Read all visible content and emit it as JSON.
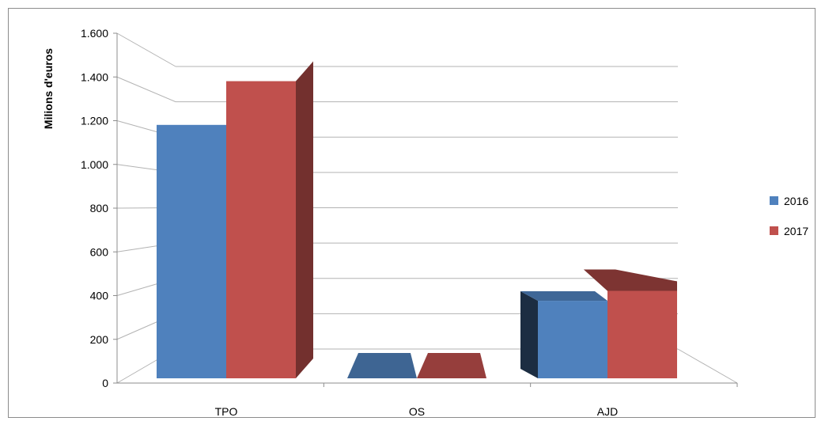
{
  "chart_data": {
    "type": "bar",
    "title": "",
    "xlabel": "",
    "ylabel": "Milions d'euros",
    "ylim": [
      0,
      1600
    ],
    "yticks": [
      0,
      200,
      400,
      600,
      800,
      1000,
      1200,
      1400,
      1600
    ],
    "ytick_labels": [
      "0",
      "200",
      "400",
      "600",
      "800",
      "1.000",
      "1.200",
      "1.400",
      "1.600"
    ],
    "categories": [
      "TPO",
      "OS",
      "AJD"
    ],
    "series": [
      {
        "name": "2016",
        "values": [
          1275,
          0,
          390
        ],
        "color": "#4f81bd"
      },
      {
        "name": "2017",
        "values": [
          1495,
          0,
          440
        ],
        "color": "#c0504d"
      }
    ],
    "grid": true,
    "legend": "right",
    "style": "3d-clustered-column"
  }
}
